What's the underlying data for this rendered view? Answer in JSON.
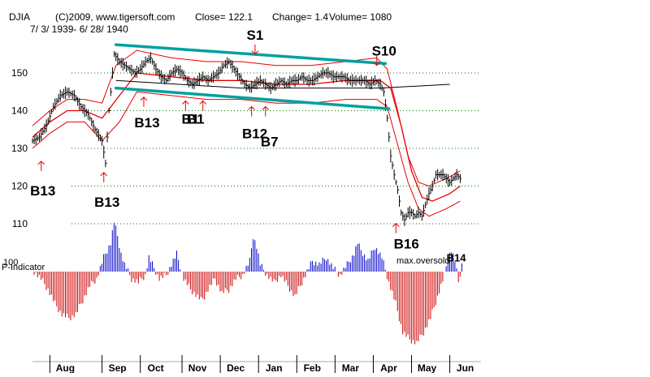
{
  "header": {
    "ticker": "DJIA",
    "source": "(C)2009, www.tigersoft.com",
    "close": "Close=  122.1",
    "change": "Change= 1.4",
    "volume": "Volume= 1080",
    "date_range": "7/ 3/ 1939- 6/ 28/ 1940"
  },
  "chart_data": {
    "type": "line",
    "title": "DJIA 7/3/1939 - 6/28/1940",
    "price_axis": {
      "ticks": [
        110,
        120,
        130,
        140,
        150
      ],
      "ylim": [
        100,
        160
      ],
      "grid": true
    },
    "months": [
      "Aug",
      "Sep",
      "Oct",
      "Nov",
      "Dec",
      "Jan",
      "Feb",
      "Mar",
      "Apr",
      "May",
      "Jun"
    ],
    "month_index": [
      10,
      40,
      62,
      86,
      108,
      130,
      152,
      174,
      196,
      218,
      240
    ],
    "n_days": 256,
    "series": [
      {
        "name": "DJIA close",
        "points": [
          [
            0,
            132
          ],
          [
            4,
            133
          ],
          [
            8,
            136
          ],
          [
            12,
            141
          ],
          [
            16,
            144
          ],
          [
            20,
            145
          ],
          [
            24,
            144
          ],
          [
            28,
            141
          ],
          [
            32,
            139
          ],
          [
            36,
            135
          ],
          [
            40,
            132
          ],
          [
            42,
            126
          ],
          [
            44,
            140
          ],
          [
            47,
            155
          ],
          [
            50,
            153
          ],
          [
            53,
            152
          ],
          [
            56,
            151
          ],
          [
            59,
            150
          ],
          [
            62,
            151
          ],
          [
            65,
            153
          ],
          [
            68,
            154
          ],
          [
            71,
            151
          ],
          [
            74,
            149
          ],
          [
            77,
            148
          ],
          [
            80,
            150
          ],
          [
            83,
            151
          ],
          [
            86,
            150
          ],
          [
            89,
            148
          ],
          [
            92,
            147
          ],
          [
            95,
            148
          ],
          [
            98,
            149
          ],
          [
            101,
            148
          ],
          [
            104,
            149
          ],
          [
            107,
            150
          ],
          [
            110,
            152
          ],
          [
            113,
            153
          ],
          [
            116,
            151
          ],
          [
            119,
            149
          ],
          [
            122,
            147
          ],
          [
            125,
            146
          ],
          [
            128,
            147
          ],
          [
            131,
            148
          ],
          [
            134,
            147
          ],
          [
            137,
            146
          ],
          [
            140,
            147
          ],
          [
            143,
            148
          ],
          [
            146,
            147
          ],
          [
            149,
            148
          ],
          [
            152,
            148
          ],
          [
            155,
            149
          ],
          [
            158,
            148
          ],
          [
            161,
            148
          ],
          [
            164,
            149
          ],
          [
            167,
            150
          ],
          [
            170,
            150
          ],
          [
            173,
            149
          ],
          [
            176,
            149
          ],
          [
            179,
            149
          ],
          [
            182,
            148
          ],
          [
            185,
            148
          ],
          [
            188,
            148
          ],
          [
            191,
            148
          ],
          [
            194,
            147
          ],
          [
            197,
            148
          ],
          [
            200,
            147
          ],
          [
            202,
            145
          ],
          [
            204,
            138
          ],
          [
            206,
            128
          ],
          [
            208,
            123
          ],
          [
            210,
            119
          ],
          [
            212,
            113
          ],
          [
            214,
            111
          ],
          [
            216,
            113
          ],
          [
            218,
            113
          ],
          [
            220,
            112
          ],
          [
            222,
            113
          ],
          [
            224,
            112
          ],
          [
            226,
            115
          ],
          [
            228,
            118
          ],
          [
            230,
            120
          ],
          [
            232,
            123
          ],
          [
            234,
            123
          ],
          [
            236,
            123
          ],
          [
            238,
            122
          ],
          [
            240,
            121
          ],
          [
            242,
            122
          ],
          [
            244,
            123
          ],
          [
            246,
            122
          ]
        ]
      },
      {
        "name": "21-day moving average",
        "points": [
          [
            0,
            133
          ],
          [
            10,
            137
          ],
          [
            20,
            140
          ],
          [
            30,
            140
          ],
          [
            40,
            138
          ],
          [
            50,
            144
          ],
          [
            60,
            150
          ],
          [
            80,
            149
          ],
          [
            100,
            148
          ],
          [
            120,
            148
          ],
          [
            140,
            147
          ],
          [
            160,
            147
          ],
          [
            180,
            148
          ],
          [
            200,
            148
          ],
          [
            206,
            146
          ],
          [
            212,
            136
          ],
          [
            218,
            124
          ],
          [
            224,
            117
          ],
          [
            230,
            116
          ],
          [
            240,
            118
          ],
          [
            246,
            120
          ]
        ]
      },
      {
        "name": "upper band",
        "points": [
          [
            0,
            136
          ],
          [
            10,
            140
          ],
          [
            20,
            143
          ],
          [
            30,
            143
          ],
          [
            40,
            142
          ],
          [
            48,
            152
          ],
          [
            60,
            156
          ],
          [
            80,
            154
          ],
          [
            100,
            153
          ],
          [
            120,
            153
          ],
          [
            140,
            152
          ],
          [
            160,
            152
          ],
          [
            180,
            153
          ],
          [
            198,
            154
          ],
          [
            204,
            151
          ],
          [
            210,
            140
          ],
          [
            216,
            128
          ],
          [
            222,
            121
          ],
          [
            228,
            120
          ],
          [
            238,
            122
          ],
          [
            246,
            124
          ]
        ]
      },
      {
        "name": "lower band",
        "points": [
          [
            0,
            130
          ],
          [
            10,
            134
          ],
          [
            20,
            137
          ],
          [
            30,
            137
          ],
          [
            40,
            132
          ],
          [
            50,
            137
          ],
          [
            60,
            145
          ],
          [
            80,
            144
          ],
          [
            100,
            143
          ],
          [
            120,
            143
          ],
          [
            140,
            142
          ],
          [
            160,
            142
          ],
          [
            180,
            143
          ],
          [
            198,
            143
          ],
          [
            204,
            141
          ],
          [
            210,
            131
          ],
          [
            216,
            121
          ],
          [
            222,
            114
          ],
          [
            228,
            112
          ],
          [
            238,
            114
          ],
          [
            246,
            116
          ]
        ]
      },
      {
        "name": "trend line",
        "points": [
          [
            48,
            148
          ],
          [
            120,
            146
          ],
          [
            200,
            146
          ],
          [
            240,
            147
          ]
        ]
      }
    ],
    "channel_lines": [
      {
        "name": "upper channel",
        "from": [
          48,
          157.5
        ],
        "to": [
          203,
          152.5
        ]
      },
      {
        "name": "lower channel",
        "from": [
          48,
          146
        ],
        "to": [
          205,
          140.5
        ]
      }
    ],
    "p_indicator": {
      "label": "P-Indicator",
      "baseline_label": "100",
      "annotation": "max.oversold",
      "points": [
        [
          0,
          0
        ],
        [
          4,
          -4
        ],
        [
          8,
          -10
        ],
        [
          12,
          -18
        ],
        [
          16,
          -24
        ],
        [
          20,
          -26
        ],
        [
          24,
          -24
        ],
        [
          28,
          -16
        ],
        [
          32,
          -8
        ],
        [
          36,
          -4
        ],
        [
          40,
          8
        ],
        [
          44,
          16
        ],
        [
          46,
          28
        ],
        [
          48,
          20
        ],
        [
          50,
          10
        ],
        [
          52,
          4
        ],
        [
          56,
          -4
        ],
        [
          60,
          -6
        ],
        [
          64,
          -2
        ],
        [
          66,
          8
        ],
        [
          68,
          4
        ],
        [
          72,
          -4
        ],
        [
          76,
          -2
        ],
        [
          80,
          6
        ],
        [
          82,
          10
        ],
        [
          86,
          -4
        ],
        [
          90,
          -10
        ],
        [
          94,
          -14
        ],
        [
          96,
          -16
        ],
        [
          98,
          -14
        ],
        [
          100,
          -10
        ],
        [
          104,
          -4
        ],
        [
          108,
          -12
        ],
        [
          112,
          -10
        ],
        [
          116,
          -4
        ],
        [
          120,
          -2
        ],
        [
          124,
          6
        ],
        [
          126,
          20
        ],
        [
          128,
          14
        ],
        [
          130,
          4
        ],
        [
          134,
          -2
        ],
        [
          138,
          -6
        ],
        [
          142,
          -2
        ],
        [
          146,
          -8
        ],
        [
          150,
          -14
        ],
        [
          154,
          -6
        ],
        [
          156,
          -2
        ],
        [
          160,
          6
        ],
        [
          164,
          4
        ],
        [
          168,
          8
        ],
        [
          172,
          2
        ],
        [
          176,
          -2
        ],
        [
          180,
          4
        ],
        [
          184,
          10
        ],
        [
          186,
          16
        ],
        [
          188,
          12
        ],
        [
          192,
          6
        ],
        [
          196,
          14
        ],
        [
          200,
          8
        ],
        [
          204,
          -6
        ],
        [
          208,
          -18
        ],
        [
          212,
          -34
        ],
        [
          216,
          -38
        ],
        [
          220,
          -40
        ],
        [
          224,
          -34
        ],
        [
          228,
          -26
        ],
        [
          232,
          -14
        ],
        [
          236,
          -2
        ],
        [
          238,
          8
        ],
        [
          240,
          12
        ],
        [
          242,
          6
        ],
        [
          244,
          -6
        ],
        [
          246,
          4
        ]
      ]
    },
    "signals": [
      {
        "label": "B13",
        "type": "buy",
        "day": 5,
        "price": 124,
        "fit": "arrow"
      },
      {
        "label": "B13",
        "type": "buy",
        "day": 41,
        "price": 121,
        "fit": "arrow"
      },
      {
        "label": "B13",
        "type": "buy",
        "day": 64,
        "price": 141,
        "fit": "arrow"
      },
      {
        "label": "B1",
        "type": "buy",
        "day": 88,
        "price": 140,
        "fit": "arrow"
      },
      {
        "label": "B1",
        "type": "buy",
        "day": 98,
        "price": 140,
        "fit": "arrow"
      },
      {
        "label": "B12",
        "type": "buy",
        "day": 126,
        "price": 138.5,
        "fit": "arrow"
      },
      {
        "label": "B7",
        "type": "buy",
        "day": 134,
        "price": 138.5,
        "fit": "arrow"
      },
      {
        "label": "S1",
        "type": "sell",
        "day": 128,
        "price": 155,
        "fit": "arrow"
      },
      {
        "label": "S10",
        "type": "sell",
        "day": 198,
        "price": 152,
        "fit": "arrow"
      },
      {
        "label": "B16",
        "type": "buy",
        "day": 209,
        "price": 107.5,
        "fit": "arrow"
      },
      {
        "label": "B14",
        "type": "buy",
        "day": 240,
        "price": 100,
        "fit": "none"
      }
    ],
    "colors": {
      "price": "#000000",
      "bands": "#e60000",
      "channel": "#00a0a0",
      "grid": "#007a00",
      "indicator_pos": "#0000cc",
      "indicator_neg": "#cc0000",
      "signal": "#e60000",
      "background": "#ffffff"
    }
  }
}
